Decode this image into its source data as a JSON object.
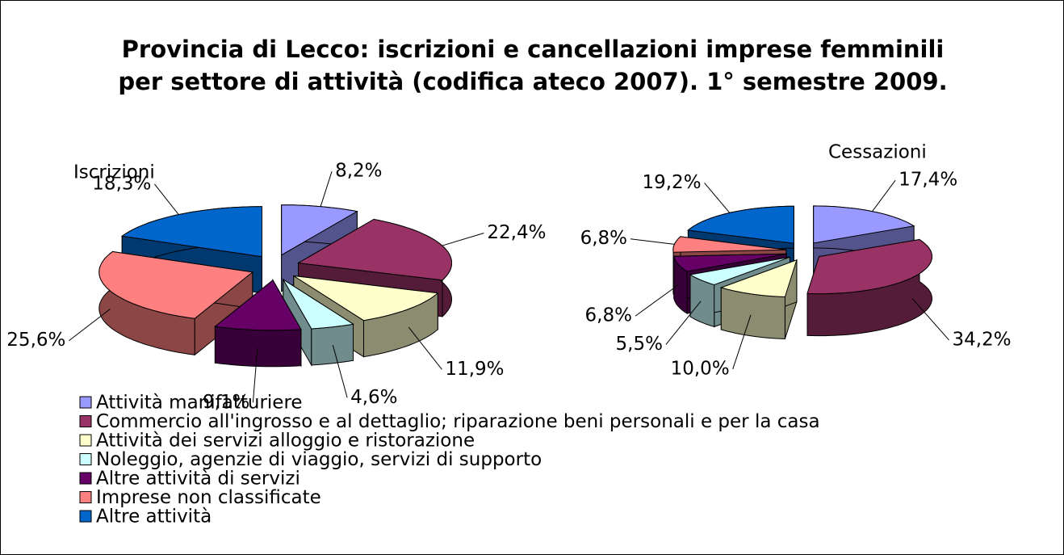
{
  "chart_data": {
    "type": "pie",
    "title": "Provincia di Lecco: iscrizioni e cancellazioni imprese femminili per settore di attività (codifica ateco 2007). 1° semestre 2009.",
    "categories": [
      "Attività manifatturiere",
      "Commercio all'ingrosso e al dettaglio; riparazione beni personali e per la casa",
      "Attività dei servizi alloggio e ristorazione",
      "Noleggio, agenzie di viaggio, servizi di supporto",
      "Altre attività di servizi",
      "Imprese non classificate",
      "Altre attività"
    ],
    "colors": [
      "#9999ff",
      "#993366",
      "#ffffcc",
      "#ccffff",
      "#660066",
      "#ff8080",
      "#0066cc"
    ],
    "series": [
      {
        "name": "Iscrizioni",
        "values": [
          8.2,
          22.4,
          11.9,
          4.6,
          9.1,
          25.6,
          18.3
        ],
        "value_labels": [
          "8,2%",
          "22,4%",
          "11,9%",
          "4,6%",
          "9,1%",
          "25,6%",
          "18,3%"
        ]
      },
      {
        "name": "Cessazioni",
        "values": [
          17.4,
          34.2,
          10.0,
          5.5,
          6.8,
          6.8,
          19.2
        ],
        "value_labels": [
          "17,4%",
          "34,2%",
          "10,0%",
          "5,5%",
          "6,8%",
          "6,8%",
          "19,2%"
        ]
      }
    ]
  }
}
